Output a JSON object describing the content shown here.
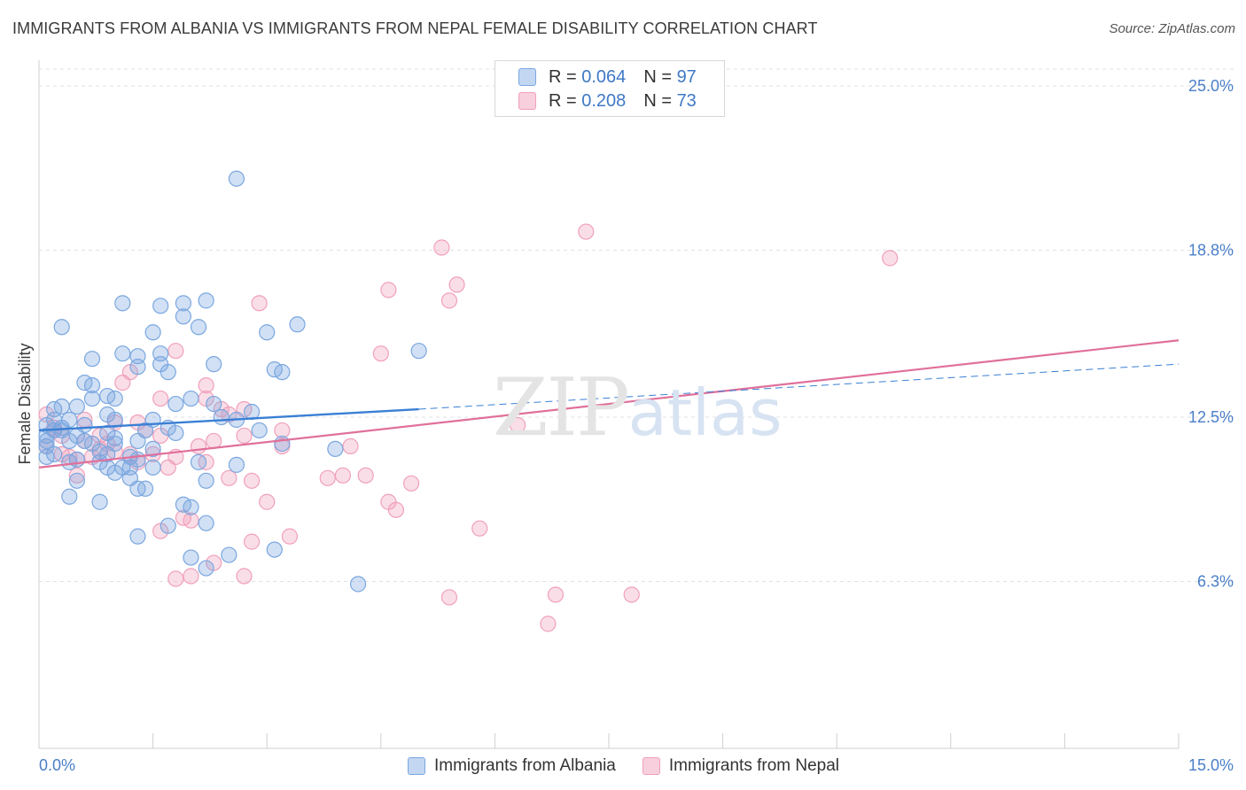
{
  "header": {
    "title": "IMMIGRANTS FROM ALBANIA VS IMMIGRANTS FROM NEPAL FEMALE DISABILITY CORRELATION CHART",
    "source": "Source: ZipAtlas.com"
  },
  "legend": {
    "albania": {
      "r_label": "R =",
      "r_value": "0.064",
      "n_label": "N =",
      "n_value": "97"
    },
    "nepal": {
      "r_label": "R =",
      "r_value": "0.208",
      "n_label": "N =",
      "n_value": "73"
    }
  },
  "watermark": {
    "zip": "ZIP",
    "atlas": "atlas"
  },
  "chart_data": {
    "type": "scatter",
    "ylabel": "Female Disability",
    "xlim": [
      0.0,
      15.0
    ],
    "ylim": [
      0.0,
      25.0
    ],
    "x_tick_labels": [
      "0.0%",
      "15.0%"
    ],
    "y_ticks": [
      6.3,
      12.5,
      18.8,
      25.0
    ],
    "y_tick_labels": [
      "6.3%",
      "12.5%",
      "18.8%",
      "25.0%"
    ],
    "grid": "horizontal dashed",
    "colors": {
      "albania": "#7aa7e0",
      "albania_line": "#3a7fd5",
      "nepal": "#f0a0bb",
      "nepal_line": "#e0709a"
    },
    "series": [
      {
        "name": "Immigrants from Albania",
        "trend": {
          "x": [
            0.0,
            5.0
          ],
          "y": [
            12.0,
            12.8
          ],
          "dashed_to": [
            15.0,
            14.5
          ]
        },
        "points": [
          [
            2.6,
            21.5
          ],
          [
            0.3,
            15.9
          ],
          [
            1.1,
            16.8
          ],
          [
            1.6,
            16.7
          ],
          [
            1.9,
            16.8
          ],
          [
            2.2,
            16.9
          ],
          [
            1.9,
            16.3
          ],
          [
            2.1,
            15.9
          ],
          [
            3.0,
            15.7
          ],
          [
            3.4,
            16.0
          ],
          [
            1.5,
            15.7
          ],
          [
            0.7,
            14.7
          ],
          [
            1.1,
            14.9
          ],
          [
            1.3,
            14.8
          ],
          [
            1.6,
            14.9
          ],
          [
            1.3,
            14.4
          ],
          [
            1.6,
            14.5
          ],
          [
            1.7,
            14.2
          ],
          [
            2.3,
            14.5
          ],
          [
            3.1,
            14.3
          ],
          [
            3.2,
            14.2
          ],
          [
            5.0,
            15.0
          ],
          [
            0.6,
            13.8
          ],
          [
            0.7,
            13.7
          ],
          [
            0.7,
            13.2
          ],
          [
            0.9,
            13.3
          ],
          [
            1.0,
            13.2
          ],
          [
            1.8,
            13.0
          ],
          [
            2.0,
            13.2
          ],
          [
            2.3,
            13.0
          ],
          [
            2.8,
            12.7
          ],
          [
            2.6,
            12.4
          ],
          [
            0.2,
            12.8
          ],
          [
            0.3,
            12.9
          ],
          [
            0.5,
            12.9
          ],
          [
            0.2,
            12.4
          ],
          [
            0.3,
            12.1
          ],
          [
            0.4,
            12.4
          ],
          [
            0.9,
            12.6
          ],
          [
            1.0,
            12.4
          ],
          [
            1.5,
            12.4
          ],
          [
            0.1,
            12.2
          ],
          [
            0.2,
            12.0
          ],
          [
            0.1,
            11.8
          ],
          [
            0.1,
            11.6
          ],
          [
            0.1,
            11.4
          ],
          [
            0.4,
            11.6
          ],
          [
            0.6,
            11.6
          ],
          [
            0.7,
            11.5
          ],
          [
            0.9,
            11.9
          ],
          [
            1.0,
            11.5
          ],
          [
            1.0,
            11.7
          ],
          [
            1.3,
            11.6
          ],
          [
            1.5,
            11.3
          ],
          [
            1.8,
            11.9
          ],
          [
            2.9,
            12.0
          ],
          [
            3.2,
            11.5
          ],
          [
            3.9,
            11.3
          ],
          [
            0.1,
            11.0
          ],
          [
            0.4,
            10.8
          ],
          [
            0.5,
            10.9
          ],
          [
            0.8,
            10.8
          ],
          [
            0.9,
            10.6
          ],
          [
            1.0,
            10.4
          ],
          [
            1.1,
            10.6
          ],
          [
            1.2,
            10.6
          ],
          [
            1.3,
            10.9
          ],
          [
            1.5,
            10.6
          ],
          [
            2.1,
            10.8
          ],
          [
            2.6,
            10.7
          ],
          [
            0.5,
            10.1
          ],
          [
            1.2,
            10.2
          ],
          [
            1.3,
            9.8
          ],
          [
            1.4,
            9.8
          ],
          [
            2.2,
            10.1
          ],
          [
            0.4,
            9.5
          ],
          [
            0.8,
            9.3
          ],
          [
            1.9,
            9.2
          ],
          [
            2.0,
            9.1
          ],
          [
            2.2,
            8.5
          ],
          [
            1.7,
            8.4
          ],
          [
            1.3,
            8.0
          ],
          [
            2.0,
            7.2
          ],
          [
            2.2,
            6.8
          ],
          [
            2.5,
            7.3
          ],
          [
            3.1,
            7.5
          ],
          [
            4.2,
            6.2
          ],
          [
            0.3,
            12.0
          ],
          [
            0.6,
            12.2
          ],
          [
            0.8,
            11.2
          ],
          [
            1.2,
            11.0
          ],
          [
            1.7,
            12.1
          ],
          [
            2.4,
            12.5
          ],
          [
            0.2,
            11.1
          ],
          [
            0.5,
            11.8
          ],
          [
            1.4,
            12.0
          ],
          [
            0.9,
            11.1
          ]
        ]
      },
      {
        "name": "Immigrants from Nepal",
        "trend": {
          "x": [
            0.0,
            15.0
          ],
          "y": [
            10.6,
            15.4
          ]
        },
        "points": [
          [
            7.2,
            19.5
          ],
          [
            5.3,
            18.9
          ],
          [
            11.2,
            18.5
          ],
          [
            5.5,
            17.5
          ],
          [
            4.6,
            17.3
          ],
          [
            5.4,
            16.9
          ],
          [
            2.9,
            16.8
          ],
          [
            1.2,
            14.2
          ],
          [
            1.1,
            13.8
          ],
          [
            4.5,
            14.9
          ],
          [
            1.8,
            15.0
          ],
          [
            1.6,
            13.2
          ],
          [
            2.2,
            13.2
          ],
          [
            2.2,
            13.7
          ],
          [
            2.4,
            12.8
          ],
          [
            2.5,
            12.6
          ],
          [
            2.7,
            12.8
          ],
          [
            0.1,
            12.6
          ],
          [
            0.2,
            12.0
          ],
          [
            0.3,
            11.8
          ],
          [
            0.6,
            11.6
          ],
          [
            0.8,
            11.8
          ],
          [
            1.0,
            12.3
          ],
          [
            1.3,
            12.3
          ],
          [
            1.6,
            11.8
          ],
          [
            2.3,
            11.6
          ],
          [
            2.7,
            11.8
          ],
          [
            3.2,
            11.4
          ],
          [
            4.1,
            11.4
          ],
          [
            6.3,
            12.2
          ],
          [
            0.1,
            11.4
          ],
          [
            0.3,
            11.1
          ],
          [
            0.4,
            11.0
          ],
          [
            0.5,
            10.9
          ],
          [
            0.7,
            11.0
          ],
          [
            0.8,
            11.3
          ],
          [
            1.0,
            11.2
          ],
          [
            1.2,
            11.1
          ],
          [
            1.3,
            10.8
          ],
          [
            1.5,
            11.1
          ],
          [
            1.8,
            11.0
          ],
          [
            2.2,
            10.8
          ],
          [
            2.5,
            10.2
          ],
          [
            2.8,
            10.1
          ],
          [
            3.8,
            10.2
          ],
          [
            4.0,
            10.3
          ],
          [
            4.3,
            10.3
          ],
          [
            4.9,
            10.0
          ],
          [
            1.7,
            10.6
          ],
          [
            0.5,
            10.3
          ],
          [
            3.0,
            9.3
          ],
          [
            4.6,
            9.3
          ],
          [
            4.7,
            9.0
          ],
          [
            1.9,
            8.7
          ],
          [
            2.0,
            8.6
          ],
          [
            1.6,
            8.2
          ],
          [
            3.3,
            8.0
          ],
          [
            2.8,
            7.8
          ],
          [
            5.8,
            8.3
          ],
          [
            2.3,
            7.0
          ],
          [
            1.8,
            6.4
          ],
          [
            2.0,
            6.5
          ],
          [
            2.7,
            6.5
          ],
          [
            5.4,
            5.7
          ],
          [
            6.8,
            5.8
          ],
          [
            7.8,
            5.8
          ],
          [
            6.7,
            4.7
          ],
          [
            0.2,
            12.1
          ],
          [
            0.6,
            12.4
          ],
          [
            1.4,
            12.0
          ],
          [
            3.2,
            12.0
          ],
          [
            0.9,
            11.5
          ],
          [
            2.1,
            11.4
          ]
        ]
      }
    ]
  },
  "bottom_legend": {
    "albania": "Immigrants from Albania",
    "nepal": "Immigrants from Nepal"
  }
}
